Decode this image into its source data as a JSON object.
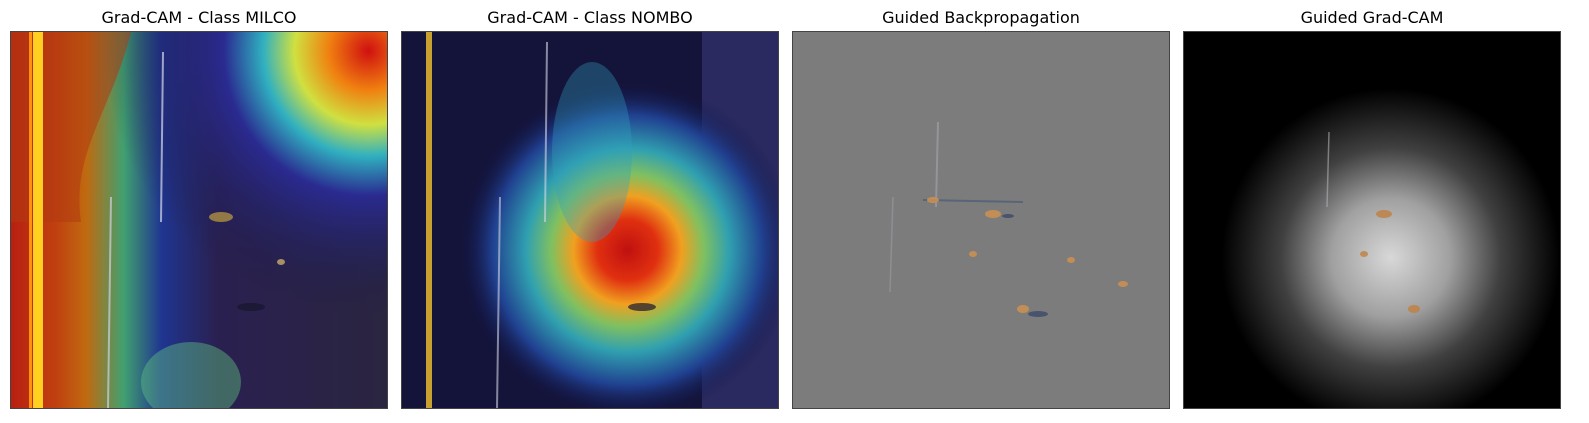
{
  "figure": {
    "panels": [
      {
        "title": "Grad-CAM - Class MILCO",
        "image": "gradcam-heatmap-overlay-sonar"
      },
      {
        "title": "Grad-CAM - Class NOMBO",
        "image": "gradcam-heatmap-overlay-sonar"
      },
      {
        "title": "Guided Backpropagation",
        "image": "guided-backprop-gray-map"
      },
      {
        "title": "Guided Grad-CAM",
        "image": "guided-gradcam-dark-map"
      }
    ]
  }
}
